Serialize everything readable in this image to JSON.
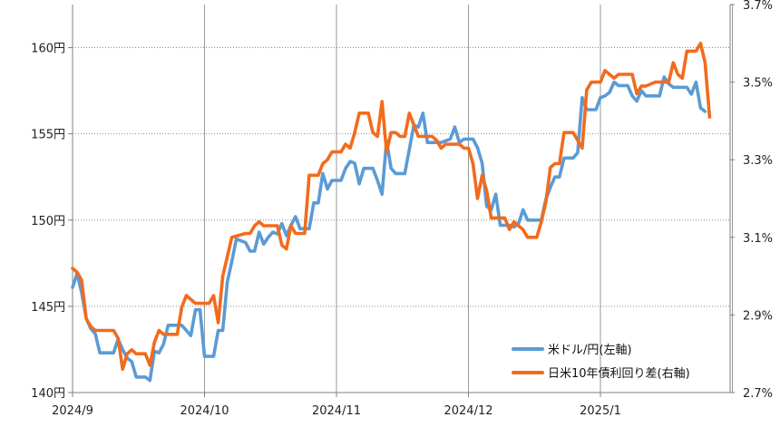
{
  "chart_data": {
    "type": "line",
    "x_labels": [
      "2024/9",
      "2024/10",
      "2024/11",
      "2024/12",
      "2025/1"
    ],
    "y_left": {
      "min": 140,
      "max": 162.5,
      "ticks": [
        140,
        145,
        150,
        155,
        160
      ],
      "tick_labels": [
        "140円",
        "145円",
        "150円",
        "155円",
        "160円"
      ]
    },
    "y_right": {
      "min": 2.7,
      "max": 3.7,
      "ticks": [
        2.7,
        2.9,
        3.1,
        3.3,
        3.5,
        3.7
      ],
      "tick_labels": [
        "2.7%",
        "2.9%",
        "3.1%",
        "3.3%",
        "3.5%",
        "3.7%"
      ]
    },
    "grid": true,
    "legend_position": "bottom-right",
    "series": [
      {
        "name": "米ドル/円(左軸)",
        "axis": "left",
        "color": "#5b9bd5",
        "points": [
          [
            0,
            146.1
          ],
          [
            1,
            146.9
          ],
          [
            2,
            145.8
          ],
          [
            3,
            144.3
          ],
          [
            4,
            143.7
          ],
          [
            5,
            143.4
          ],
          [
            6,
            142.3
          ],
          [
            9,
            142.3
          ],
          [
            10,
            143.1
          ],
          [
            11,
            142.5
          ],
          [
            12,
            142.0
          ],
          [
            13,
            141.8
          ],
          [
            14,
            140.9
          ],
          [
            16,
            140.9
          ],
          [
            17,
            140.7
          ],
          [
            18,
            142.4
          ],
          [
            19,
            142.3
          ],
          [
            20,
            142.8
          ],
          [
            21,
            143.9
          ],
          [
            22,
            143.9
          ],
          [
            24,
            143.9
          ],
          [
            25,
            143.6
          ],
          [
            26,
            143.3
          ],
          [
            27,
            144.8
          ],
          [
            28,
            144.8
          ],
          [
            29,
            142.1
          ],
          [
            31,
            142.1
          ],
          [
            32,
            143.6
          ],
          [
            33,
            143.6
          ],
          [
            34,
            146.4
          ],
          [
            35,
            147.6
          ],
          [
            36,
            148.9
          ],
          [
            37,
            148.8
          ],
          [
            38,
            148.7
          ],
          [
            39,
            148.2
          ],
          [
            40,
            148.2
          ],
          [
            41,
            149.3
          ],
          [
            42,
            148.6
          ],
          [
            43,
            149.0
          ],
          [
            44,
            149.3
          ],
          [
            45,
            149.2
          ],
          [
            46,
            149.8
          ],
          [
            47,
            149.1
          ],
          [
            48,
            149.7
          ],
          [
            49,
            150.2
          ],
          [
            50,
            149.5
          ],
          [
            51,
            149.5
          ],
          [
            52,
            149.5
          ],
          [
            53,
            151.0
          ],
          [
            54,
            151.0
          ],
          [
            55,
            152.7
          ],
          [
            56,
            151.8
          ],
          [
            57,
            152.3
          ],
          [
            59,
            152.3
          ],
          [
            60,
            153.0
          ],
          [
            61,
            153.4
          ],
          [
            62,
            153.3
          ],
          [
            63,
            152.1
          ],
          [
            64,
            153.0
          ],
          [
            66,
            153.0
          ],
          [
            67,
            152.3
          ],
          [
            68,
            151.5
          ],
          [
            69,
            154.6
          ],
          [
            70,
            153.0
          ],
          [
            71,
            152.7
          ],
          [
            73,
            152.7
          ],
          [
            74,
            154.1
          ],
          [
            75,
            155.5
          ],
          [
            76,
            155.4
          ],
          [
            77,
            156.2
          ],
          [
            78,
            154.5
          ],
          [
            81,
            154.5
          ],
          [
            82,
            154.6
          ],
          [
            83,
            154.7
          ],
          [
            84,
            155.4
          ],
          [
            85,
            154.5
          ],
          [
            86,
            154.7
          ],
          [
            88,
            154.7
          ],
          [
            89,
            154.2
          ],
          [
            90,
            153.3
          ],
          [
            91,
            150.8
          ],
          [
            92,
            150.6
          ],
          [
            93,
            151.5
          ],
          [
            94,
            149.7
          ],
          [
            96,
            149.7
          ],
          [
            97,
            149.6
          ],
          [
            98,
            149.8
          ],
          [
            99,
            150.6
          ],
          [
            100,
            150.0
          ],
          [
            103,
            150.0
          ],
          [
            104,
            151.2
          ],
          [
            105,
            151.9
          ],
          [
            106,
            152.5
          ],
          [
            107,
            152.5
          ],
          [
            108,
            153.6
          ],
          [
            110,
            153.6
          ],
          [
            111,
            153.9
          ],
          [
            112,
            157.1
          ],
          [
            113,
            156.4
          ],
          [
            115,
            156.4
          ],
          [
            116,
            157.1
          ],
          [
            117,
            157.2
          ],
          [
            118,
            157.4
          ],
          [
            119,
            158.0
          ],
          [
            120,
            157.8
          ],
          [
            122,
            157.8
          ],
          [
            123,
            157.2
          ],
          [
            124,
            156.9
          ],
          [
            125,
            157.5
          ],
          [
            126,
            157.2
          ],
          [
            129,
            157.2
          ],
          [
            130,
            158.3
          ],
          [
            131,
            157.9
          ],
          [
            132,
            157.7
          ],
          [
            135,
            157.7
          ],
          [
            136,
            157.3
          ],
          [
            137,
            158.0
          ],
          [
            138,
            156.5
          ],
          [
            139,
            156.3
          ]
        ]
      },
      {
        "name": "日米10年債利回り差(右軸)",
        "axis": "right",
        "color": "#f26b1d",
        "points": [
          [
            0,
            3.02
          ],
          [
            1,
            3.01
          ],
          [
            2,
            2.99
          ],
          [
            3,
            2.89
          ],
          [
            4,
            2.87
          ],
          [
            5,
            2.86
          ],
          [
            9,
            2.86
          ],
          [
            10,
            2.84
          ],
          [
            11,
            2.76
          ],
          [
            12,
            2.8
          ],
          [
            13,
            2.81
          ],
          [
            14,
            2.8
          ],
          [
            16,
            2.8
          ],
          [
            17,
            2.77
          ],
          [
            18,
            2.83
          ],
          [
            19,
            2.86
          ],
          [
            20,
            2.85
          ],
          [
            23,
            2.85
          ],
          [
            24,
            2.92
          ],
          [
            25,
            2.95
          ],
          [
            26,
            2.94
          ],
          [
            27,
            2.93
          ],
          [
            30,
            2.93
          ],
          [
            31,
            2.95
          ],
          [
            32,
            2.88
          ],
          [
            33,
            3.0
          ],
          [
            34,
            3.05
          ],
          [
            35,
            3.1
          ],
          [
            38,
            3.11
          ],
          [
            39,
            3.11
          ],
          [
            40,
            3.13
          ],
          [
            41,
            3.14
          ],
          [
            42,
            3.13
          ],
          [
            43,
            3.13
          ],
          [
            45,
            3.13
          ],
          [
            46,
            3.08
          ],
          [
            47,
            3.07
          ],
          [
            48,
            3.13
          ],
          [
            49,
            3.11
          ],
          [
            51,
            3.11
          ],
          [
            52,
            3.26
          ],
          [
            54,
            3.26
          ],
          [
            55,
            3.29
          ],
          [
            56,
            3.3
          ],
          [
            57,
            3.32
          ],
          [
            59,
            3.32
          ],
          [
            60,
            3.34
          ],
          [
            61,
            3.33
          ],
          [
            62,
            3.37
          ],
          [
            63,
            3.42
          ],
          [
            65,
            3.42
          ],
          [
            66,
            3.37
          ],
          [
            67,
            3.36
          ],
          [
            68,
            3.45
          ],
          [
            69,
            3.32
          ],
          [
            70,
            3.37
          ],
          [
            71,
            3.37
          ],
          [
            72,
            3.36
          ],
          [
            73,
            3.36
          ],
          [
            74,
            3.42
          ],
          [
            75,
            3.39
          ],
          [
            76,
            3.36
          ],
          [
            77,
            3.36
          ],
          [
            79,
            3.36
          ],
          [
            80,
            3.35
          ],
          [
            81,
            3.33
          ],
          [
            82,
            3.34
          ],
          [
            85,
            3.34
          ],
          [
            86,
            3.33
          ],
          [
            87,
            3.33
          ],
          [
            88,
            3.29
          ],
          [
            89,
            3.2
          ],
          [
            90,
            3.26
          ],
          [
            91,
            3.22
          ],
          [
            92,
            3.15
          ],
          [
            95,
            3.15
          ],
          [
            96,
            3.12
          ],
          [
            97,
            3.14
          ],
          [
            98,
            3.13
          ],
          [
            99,
            3.12
          ],
          [
            100,
            3.1
          ],
          [
            102,
            3.1
          ],
          [
            103,
            3.14
          ],
          [
            104,
            3.19
          ],
          [
            105,
            3.28
          ],
          [
            106,
            3.29
          ],
          [
            107,
            3.29
          ],
          [
            108,
            3.37
          ],
          [
            110,
            3.37
          ],
          [
            111,
            3.35
          ],
          [
            112,
            3.33
          ],
          [
            113,
            3.48
          ],
          [
            114,
            3.5
          ],
          [
            116,
            3.5
          ],
          [
            117,
            3.53
          ],
          [
            118,
            3.52
          ],
          [
            119,
            3.51
          ],
          [
            120,
            3.52
          ],
          [
            121,
            3.52
          ],
          [
            123,
            3.52
          ],
          [
            124,
            3.47
          ],
          [
            125,
            3.49
          ],
          [
            126,
            3.49
          ],
          [
            128,
            3.5
          ],
          [
            131,
            3.5
          ],
          [
            132,
            3.55
          ],
          [
            133,
            3.52
          ],
          [
            134,
            3.51
          ],
          [
            135,
            3.58
          ],
          [
            137,
            3.58
          ],
          [
            138,
            3.6
          ],
          [
            139,
            3.55
          ],
          [
            140,
            3.41
          ]
        ]
      }
    ]
  }
}
